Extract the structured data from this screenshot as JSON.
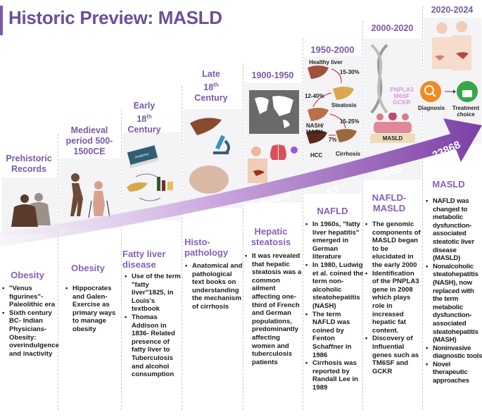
{
  "title": "Historic Preview: MASLD",
  "arrow": {
    "label": "PubMed Records",
    "counts": [
      "63",
      "26665",
      "23868"
    ],
    "color_start": "#ece4f5",
    "color_end": "#7b3fa6"
  },
  "eras": [
    {
      "name": "Prehistoric Records",
      "heading": "Obesity",
      "bullets": [
        "\"Venus figurines\"- Paleolithic era",
        "Sixth century BC- Indian Physicians- Obesity: overindulgence and inactivity"
      ]
    },
    {
      "name": "Medieval period 500-1500CE",
      "heading": "Obesity",
      "bullets": [
        "Hippocrates and Galen- Exercise as primary ways to manage obesity"
      ]
    },
    {
      "name_line1": "Early",
      "name_line2": "18",
      "name_sup": "th",
      "name_line3": "Century",
      "book_label": "Anatomy",
      "heading": "Fatty liver disease",
      "bullets": [
        "Use of the term \"fatty liver\"1825, in Louis's textbook",
        "Thomas Addison in 1836- Related presence of fatty liver to Tuberculosis and alcohol consumption"
      ]
    },
    {
      "name_line1": "Late",
      "name_line2": "18",
      "name_sup": "th",
      "name_line3": "Century",
      "heading": "Histo-pathology",
      "bullets": [
        "Anatomical and pathological text books on understanding the mechanism of cirrhosis"
      ]
    },
    {
      "name": "1900-1950",
      "heading": "Hepatic steatosis",
      "bullets": [
        "It was revealed that hepatic steatosis was a common ailment affecting one-third of French and German populations, predominantly affecting women and tuberculosis patients"
      ]
    },
    {
      "name": "1950-2000",
      "diagram": {
        "healthy": "Healthy liver",
        "p1": "15-30%",
        "steatosis": "Steatosis",
        "p2": "12-40%",
        "nash": "NASH/ MASH",
        "p3": "15-25%",
        "p4": "7%",
        "hcc": "HCC",
        "cirrhosis": "Cirrhosis"
      },
      "heading": "NAFLD",
      "bullets": [
        "In 1960s, \"fatty liver hepatitis\" emerged in German literature",
        "In 1980, Ludwig et al. coined the term non-alcoholic steatohepatitis (NASH)",
        "The term NAFLD was coined by Fenton Schaffner in 1986",
        "Cirrhosis was reported by Randall Lee  in 1989"
      ]
    },
    {
      "name": "2000-2020",
      "genes": [
        "PNPLA3",
        "M6SF",
        "GCKR"
      ],
      "banner": "MASLD",
      "heading": "NAFLD-MASLD",
      "bullets": [
        "The genomic components of MASLD began to be elucidated in the early 2000",
        "Identification of the PNPLA3 gene in 2008 which plays role in increased hepatic fat content.",
        "Discovery of influential genes such as TM6SF and GCKR"
      ]
    },
    {
      "name": "2020-2024",
      "diagnosis": "Diagnosis",
      "treatment": "Treatment choice",
      "heading": "MASLD",
      "bullets": [
        "NAFLD was changed to metabolic dysfunction-associated steatotic liver disease (MASLD)",
        "Nonalcoholic steatohepatitis (NASH), now replaced with the term metabolic dysfunction-associated steatohepatitis (MASH)",
        "Noninvasive diagnostic tools",
        "Novel therapeutic approaches"
      ]
    }
  ]
}
